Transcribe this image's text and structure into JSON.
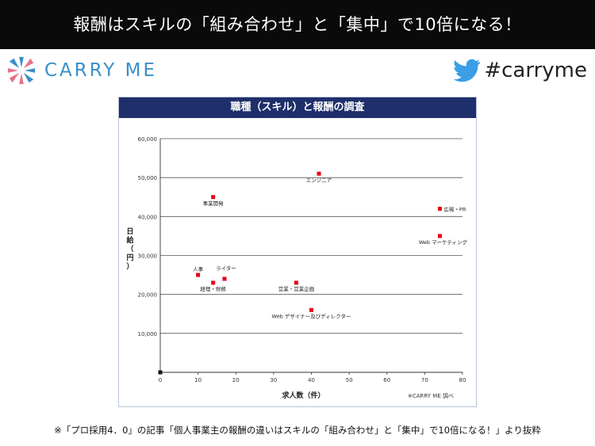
{
  "header": {
    "title": "報酬はスキルの「組み合わせ」と「集中」で10倍になる！"
  },
  "brand": {
    "name": "CARRY ME",
    "hashtag": "#carryme",
    "accent": "#3a8fc8",
    "twitter_color": "#3b9ee6"
  },
  "chart_data": {
    "type": "scatter",
    "title": "職種（スキル）と報酬の調査",
    "xlabel": "求人数（件）",
    "ylabel": "日給（円）",
    "source": "※CARRY ME 調べ",
    "xlim": [
      0,
      80
    ],
    "ylim": [
      0,
      60000
    ],
    "x_ticks": [
      "0",
      "10",
      "20",
      "30",
      "40",
      "50",
      "60",
      "70",
      "80"
    ],
    "y_ticks": [
      "10,000",
      "20,000",
      "30,000",
      "40,000",
      "50,000",
      "60,000"
    ],
    "grid": "horizontal",
    "point_color": "#e60012",
    "points": [
      {
        "label": "エンジニア",
        "x": 42,
        "y": 51000
      },
      {
        "label": "事業開発",
        "x": 14,
        "y": 45000
      },
      {
        "label": "広報・PR",
        "x": 74,
        "y": 42000
      },
      {
        "label": "Web マーケティング",
        "x": 74,
        "y": 35000
      },
      {
        "label": "人事",
        "x": 10,
        "y": 25000
      },
      {
        "label": "ライター",
        "x": 17,
        "y": 24000
      },
      {
        "label": "経理・財務",
        "x": 14,
        "y": 23000
      },
      {
        "label": "営業・営業企画",
        "x": 36,
        "y": 23000
      },
      {
        "label": "Web デザイナー及びディレクター",
        "x": 40,
        "y": 16000
      }
    ]
  },
  "footnote": "※「プロ採用4．0」の記事「個人事業主の報酬の違いはスキルの「組み合わせ」と「集中」で10倍になる！」より抜粋"
}
